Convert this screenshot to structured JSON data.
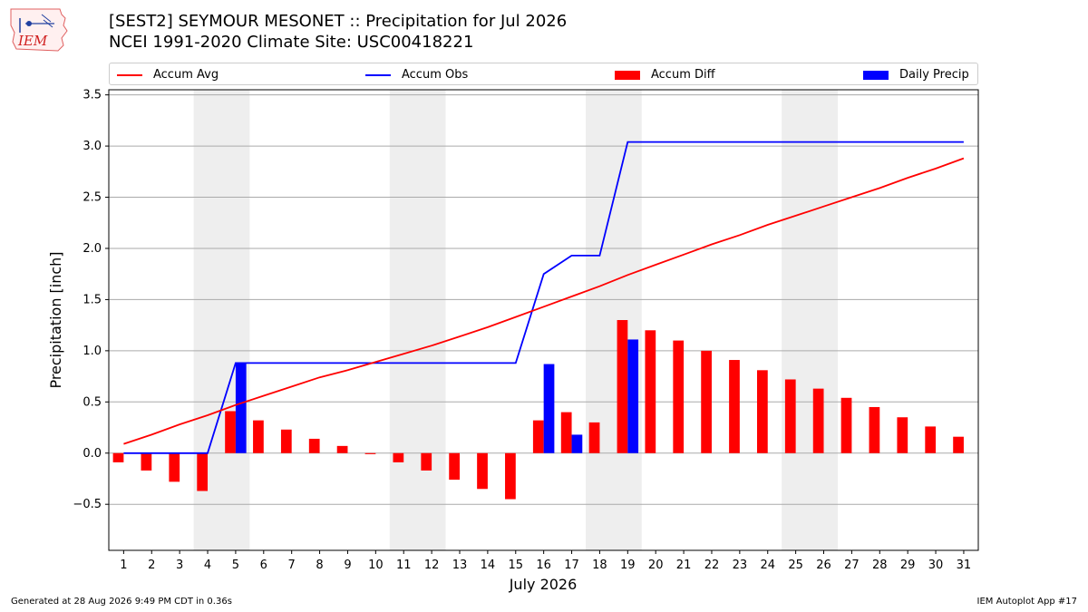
{
  "header": {
    "title_line1": "[SEST2] SEYMOUR MESONET :: Precipitation for Jul 2026",
    "title_line2": "NCEI 1991-2020 Climate Site: USC00418221",
    "logo_text": "IEM"
  },
  "colors": {
    "accum_avg": "#ff0000",
    "accum_obs": "#0000ff",
    "accum_diff": "#ff0000",
    "daily_precip": "#0000ff",
    "weekend_shade": "#eeeeee",
    "grid": "#aaaaaa"
  },
  "legend": [
    {
      "label": "Accum Avg",
      "kind": "line",
      "color": "#ff0000"
    },
    {
      "label": "Accum Obs",
      "kind": "line",
      "color": "#0000ff"
    },
    {
      "label": "Accum Diff",
      "kind": "bar",
      "color": "#ff0000"
    },
    {
      "label": "Daily Precip",
      "kind": "bar",
      "color": "#0000ff"
    }
  ],
  "chart_data": {
    "type": "bar",
    "xlabel": "July 2026",
    "ylabel": "Precipitation [inch]",
    "ylim": [
      -0.95,
      3.55
    ],
    "yticks": [
      -0.5,
      0.0,
      0.5,
      1.0,
      1.5,
      2.0,
      2.5,
      3.0,
      3.5
    ],
    "grid": true,
    "legend_position": "top",
    "days": [
      1,
      2,
      3,
      4,
      5,
      6,
      7,
      8,
      9,
      10,
      11,
      12,
      13,
      14,
      15,
      16,
      17,
      18,
      19,
      20,
      21,
      22,
      23,
      24,
      25,
      26,
      27,
      28,
      29,
      30,
      31
    ],
    "weekend_ranges": [
      [
        4,
        5
      ],
      [
        11,
        12
      ],
      [
        18,
        19
      ],
      [
        25,
        26
      ]
    ],
    "series": [
      {
        "name": "Accum Avg",
        "type": "line",
        "values": [
          0.09,
          0.18,
          0.28,
          0.37,
          0.47,
          0.56,
          0.65,
          0.74,
          0.81,
          0.89,
          0.97,
          1.05,
          1.14,
          1.23,
          1.33,
          1.43,
          1.53,
          1.63,
          1.74,
          1.84,
          1.94,
          2.04,
          2.13,
          2.23,
          2.32,
          2.41,
          2.5,
          2.59,
          2.69,
          2.78,
          2.88
        ]
      },
      {
        "name": "Accum Obs",
        "type": "line",
        "values": [
          0.0,
          0.0,
          0.0,
          0.0,
          0.88,
          0.88,
          0.88,
          0.88,
          0.88,
          0.88,
          0.88,
          0.88,
          0.88,
          0.88,
          0.88,
          1.75,
          1.93,
          1.93,
          3.04,
          3.04,
          3.04,
          3.04,
          3.04,
          3.04,
          3.04,
          3.04,
          3.04,
          3.04,
          3.04,
          3.04,
          3.04
        ]
      },
      {
        "name": "Accum Diff",
        "type": "bar",
        "values": [
          -0.09,
          -0.17,
          -0.28,
          -0.37,
          0.41,
          0.32,
          0.23,
          0.14,
          0.07,
          -0.01,
          -0.09,
          -0.17,
          -0.26,
          -0.35,
          -0.45,
          0.32,
          0.4,
          0.3,
          1.3,
          1.2,
          1.1,
          1.0,
          0.91,
          0.81,
          0.72,
          0.63,
          0.54,
          0.45,
          0.35,
          0.26,
          0.16
        ]
      },
      {
        "name": "Daily Precip",
        "type": "bar",
        "values": [
          0,
          0,
          0,
          0,
          0.88,
          0,
          0,
          0,
          0,
          0,
          0,
          0,
          0,
          0,
          0,
          0.87,
          0.18,
          0,
          1.11,
          0,
          0,
          0,
          0,
          0,
          0,
          0,
          0,
          0,
          0,
          0,
          0
        ]
      }
    ]
  },
  "footer": {
    "generated": "Generated at 28 Aug 2026 9:49 PM CDT in 0.36s",
    "app": "IEM Autoplot App #17"
  }
}
